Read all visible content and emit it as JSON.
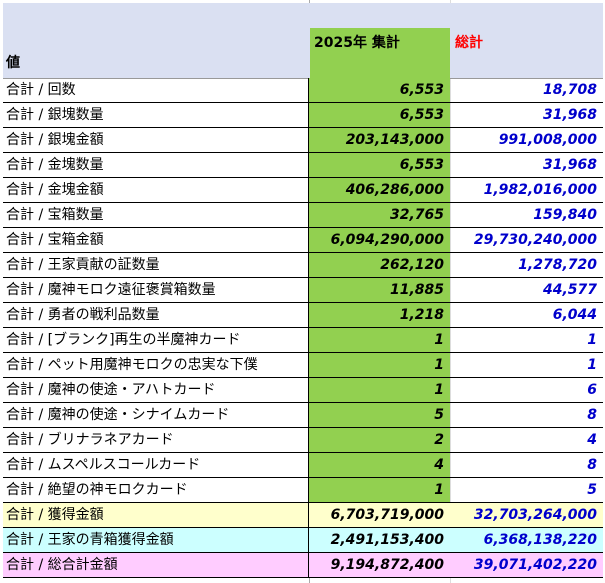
{
  "header": {
    "label": "値",
    "year_col": "2025年 集計",
    "total_col": "総計"
  },
  "colors": {
    "green": "#92d050",
    "header": "#dae0f2",
    "total_text": "#ff0000",
    "value_blue": "#0000cc",
    "yellow": "#ffffcc",
    "cyan": "#ccffff",
    "pink": "#ffccff"
  },
  "rows": [
    {
      "label": "合計 / 回数",
      "y2025": "6,553",
      "total": "18,708"
    },
    {
      "label": "合計 / 銀塊数量",
      "y2025": "6,553",
      "total": "31,968"
    },
    {
      "label": "合計 / 銀塊金額",
      "y2025": "203,143,000",
      "total": "991,008,000"
    },
    {
      "label": "合計 / 金塊数量",
      "y2025": "6,553",
      "total": "31,968"
    },
    {
      "label": "合計 / 金塊金額",
      "y2025": "406,286,000",
      "total": "1,982,016,000"
    },
    {
      "label": "合計 / 宝箱数量",
      "y2025": "32,765",
      "total": "159,840"
    },
    {
      "label": "合計 / 宝箱金額",
      "y2025": "6,094,290,000",
      "total": "29,730,240,000"
    },
    {
      "label": "合計 / 王家貢献の証数量",
      "y2025": "262,120",
      "total": "1,278,720"
    },
    {
      "label": "合計 / 魔神モロク遠征褒賞箱数量",
      "y2025": "11,885",
      "total": "44,577"
    },
    {
      "label": "合計 / 勇者の戦利品数量",
      "y2025": "1,218",
      "total": "6,044"
    },
    {
      "label": "合計 / [ブランク]再生の半魔神カード",
      "y2025": "1",
      "total": "1"
    },
    {
      "label": "合計 / ペット用魔神モロクの忠実な下僕",
      "y2025": "1",
      "total": "1"
    },
    {
      "label": "合計 / 魔神の使途・アハトカード",
      "y2025": "1",
      "total": "6"
    },
    {
      "label": "合計 / 魔神の使途・シナイムカード",
      "y2025": "5",
      "total": "8"
    },
    {
      "label": "合計 / ブリナラネアカード",
      "y2025": "2",
      "total": "4"
    },
    {
      "label": "合計 / ムスペルスコールカード",
      "y2025": "4",
      "total": "8"
    },
    {
      "label": "合計 / 絶望の神モロクカード",
      "y2025": "1",
      "total": "5"
    },
    {
      "label": "合計 / 獲得金額",
      "y2025": "6,703,719,000",
      "total": "32,703,264,000"
    },
    {
      "label": "合計 / 王家の青箱獲得金額",
      "y2025": "2,491,153,400",
      "total": "6,368,138,220"
    },
    {
      "label": "合計 / 総合計金額",
      "y2025": "9,194,872,400",
      "total": "39,071,402,220"
    }
  ]
}
